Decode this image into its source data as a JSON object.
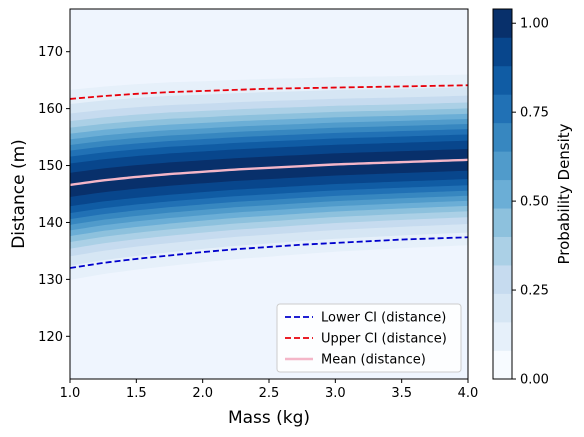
{
  "chart_data": {
    "type": "heatmap",
    "xlabel": "Mass (kg)",
    "ylabel": "Distance (m)",
    "xlim": [
      1.0,
      4.0
    ],
    "ylim": [
      112.5,
      177.5
    ],
    "x_ticks": [
      "1.0",
      "1.5",
      "2.0",
      "2.5",
      "3.0",
      "3.5",
      "4.0"
    ],
    "y_ticks": [
      "120",
      "130",
      "140",
      "150",
      "160",
      "170"
    ],
    "colorbar": {
      "label": "Probability Density",
      "range": [
        0.0,
        1.04
      ],
      "ticks": [
        "0.00",
        "0.25",
        "0.50",
        "0.75",
        "1.00"
      ],
      "levels": [
        0.0,
        0.08,
        0.16,
        0.24,
        0.32,
        0.4,
        0.48,
        0.56,
        0.64,
        0.72,
        0.8,
        0.88,
        0.96,
        1.04
      ],
      "colormap": "Blues"
    },
    "x": [
      1.0,
      1.25,
      1.5,
      1.75,
      2.0,
      2.25,
      2.5,
      2.75,
      3.0,
      3.25,
      3.5,
      3.75,
      4.0
    ],
    "series": [
      {
        "name": "Lower CI (distance)",
        "color": "#0000cc",
        "style": "dashed",
        "values": [
          132.0,
          132.9,
          133.6,
          134.2,
          134.8,
          135.3,
          135.7,
          136.1,
          136.4,
          136.7,
          137.0,
          137.2,
          137.4
        ]
      },
      {
        "name": "Upper CI (distance)",
        "color": "#e8000b",
        "style": "dashed",
        "values": [
          161.7,
          162.2,
          162.6,
          162.9,
          163.1,
          163.3,
          163.5,
          163.6,
          163.7,
          163.8,
          163.9,
          164.0,
          164.1
        ]
      },
      {
        "name": "Mean (distance)",
        "color": "#f4b6c8",
        "style": "solid",
        "values": [
          146.6,
          147.4,
          148.0,
          148.5,
          148.9,
          149.3,
          149.6,
          149.9,
          150.2,
          150.4,
          150.6,
          150.8,
          151.0
        ]
      }
    ],
    "legend_position": "lower-right",
    "grid": false
  },
  "colors": {
    "background_band": "#eff5fe",
    "colormap_stops": [
      "#f7fbff",
      "#deebf7",
      "#c6dbef",
      "#9ecae1",
      "#6baed6",
      "#4292c6",
      "#2171b5",
      "#08519c",
      "#08306b"
    ]
  }
}
